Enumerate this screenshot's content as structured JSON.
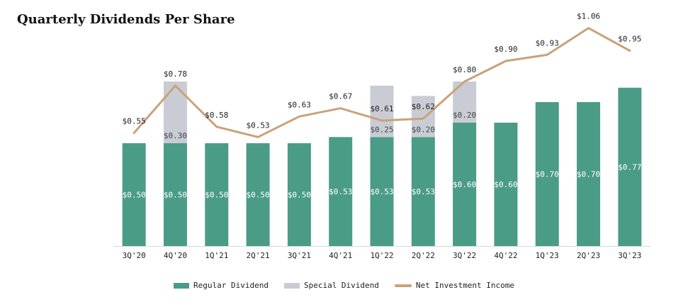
{
  "title": "Quarterly Dividends Per Share",
  "colors": {
    "regular": "#4a9c87",
    "special": "#c9ccd4",
    "nii": "#c9a27a",
    "axis": "#d8d8d8"
  },
  "legend": {
    "regular": "Regular Dividend",
    "special": "Special Dividend",
    "nii": "Net Investment Income"
  },
  "chart_data": {
    "type": "bar",
    "categories": [
      "3Q'20",
      "4Q'20",
      "1Q'21",
      "2Q'21",
      "3Q'21",
      "4Q'21",
      "1Q'22",
      "2Q'22",
      "3Q'22",
      "4Q'22",
      "1Q'23",
      "2Q'23",
      "3Q'23"
    ],
    "series": [
      {
        "name": "Regular Dividend",
        "kind": "stacked-bar",
        "values": [
          0.5,
          0.5,
          0.5,
          0.5,
          0.5,
          0.53,
          0.53,
          0.53,
          0.6,
          0.6,
          0.7,
          0.7,
          0.77
        ],
        "labels": [
          "$0.50",
          "$0.50",
          "$0.50",
          "$0.50",
          "$0.50",
          "$0.53",
          "$0.53",
          "$0.53",
          "$0.60",
          "$0.60",
          "$0.70",
          "$0.70",
          "$0.77"
        ]
      },
      {
        "name": "Special Dividend",
        "kind": "stacked-bar",
        "values": [
          0,
          0.3,
          0,
          0,
          0,
          0,
          0.25,
          0.2,
          0.2,
          0,
          0,
          0,
          0
        ],
        "labels": [
          "",
          "$0.30",
          "",
          "",
          "",
          "",
          "$0.25",
          "$0.20",
          "$0.20",
          "",
          "",
          "",
          ""
        ]
      },
      {
        "name": "Net Investment Income",
        "kind": "line",
        "values": [
          0.55,
          0.78,
          0.58,
          0.53,
          0.63,
          0.67,
          0.61,
          0.62,
          0.8,
          0.9,
          0.93,
          1.06,
          0.95
        ],
        "labels": [
          "$0.55",
          "$0.78",
          "$0.58",
          "$0.53",
          "$0.63",
          "$0.67",
          "$0.61",
          "$0.62",
          "$0.80",
          "$0.90",
          "$0.93",
          "$1.06",
          "$0.95"
        ]
      }
    ],
    "ylim": [
      0,
      1.1
    ],
    "grid": false,
    "legend_position": "bottom"
  }
}
